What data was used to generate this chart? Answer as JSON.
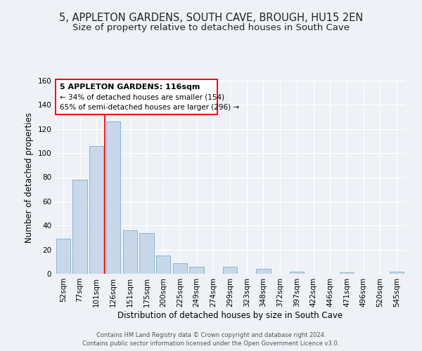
{
  "title": "5, APPLETON GARDENS, SOUTH CAVE, BROUGH, HU15 2EN",
  "subtitle": "Size of property relative to detached houses in South Cave",
  "xlabel": "Distribution of detached houses by size in South Cave",
  "ylabel": "Number of detached properties",
  "bar_labels": [
    "52sqm",
    "77sqm",
    "101sqm",
    "126sqm",
    "151sqm",
    "175sqm",
    "200sqm",
    "225sqm",
    "249sqm",
    "274sqm",
    "299sqm",
    "323sqm",
    "348sqm",
    "372sqm",
    "397sqm",
    "422sqm",
    "446sqm",
    "471sqm",
    "496sqm",
    "520sqm",
    "545sqm"
  ],
  "bar_values": [
    29,
    78,
    106,
    126,
    36,
    34,
    15,
    9,
    6,
    0,
    6,
    0,
    4,
    0,
    2,
    0,
    0,
    1,
    0,
    0,
    2
  ],
  "bar_color": "#c8d8ea",
  "bar_edgecolor": "#8ab4cc",
  "ylim": [
    0,
    160
  ],
  "yticks": [
    0,
    20,
    40,
    60,
    80,
    100,
    120,
    140,
    160
  ],
  "annotation_title": "5 APPLETON GARDENS: 116sqm",
  "annotation_line1": "← 34% of detached houses are smaller (154)",
  "annotation_line2": "65% of semi-detached houses are larger (296) →",
  "footer1": "Contains HM Land Registry data © Crown copyright and database right 2024.",
  "footer2": "Contains public sector information licensed under the Open Government Licence v3.0.",
  "background_color": "#eef2f7",
  "plot_background": "#eef2f7",
  "grid_color": "#ffffff",
  "title_fontsize": 10.5,
  "subtitle_fontsize": 9.5,
  "ylabel_fontsize": 8.5,
  "xlabel_fontsize": 8.5,
  "tick_fontsize": 7.5,
  "annotation_title_fontsize": 8,
  "annotation_text_fontsize": 7.5,
  "footer_fontsize": 6
}
